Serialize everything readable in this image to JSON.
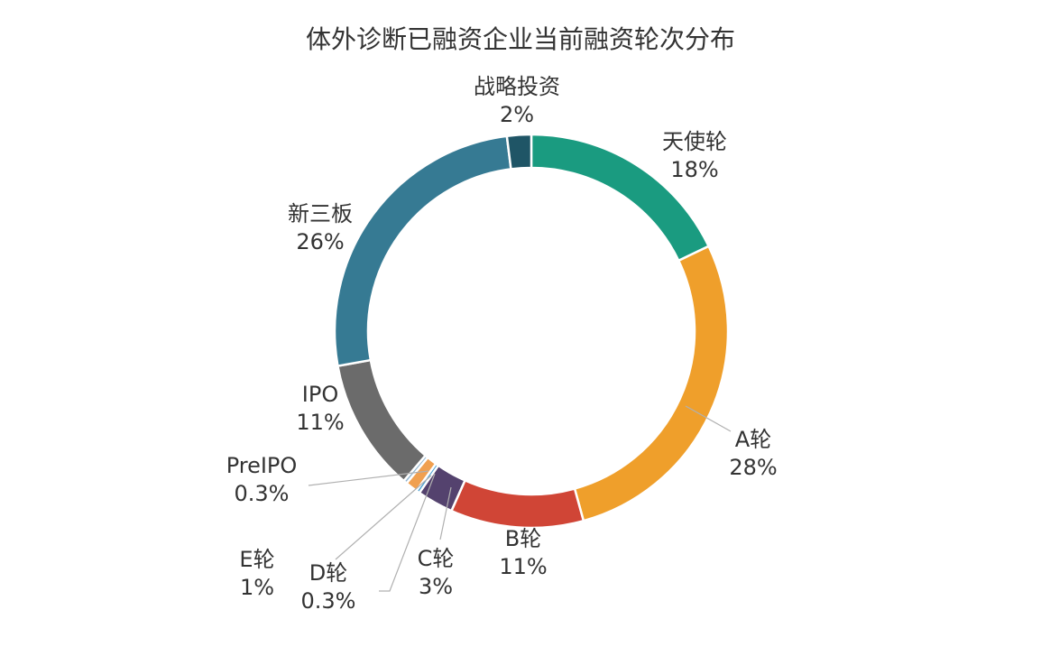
{
  "chart_data": {
    "type": "pie",
    "title": "体外诊断已融资企业当前融资轮次分布",
    "donut": true,
    "slices": [
      {
        "label": "天使轮",
        "value": 18,
        "value_label": "18%",
        "color": "#1a9b80"
      },
      {
        "label": "A轮",
        "value": 28,
        "value_label": "28%",
        "color": "#ef9f2b"
      },
      {
        "label": "B轮",
        "value": 11,
        "value_label": "11%",
        "color": "#d04536"
      },
      {
        "label": "C轮",
        "value": 3,
        "value_label": "3%",
        "color": "#54426e"
      },
      {
        "label": "D轮",
        "value": 0.3,
        "value_label": "0.3%",
        "color": "#4a9fd1"
      },
      {
        "label": "E轮",
        "value": 1,
        "value_label": "1%",
        "color": "#f0a050"
      },
      {
        "label": "PreIPO",
        "value": 0.3,
        "value_label": "0.3%",
        "color": "#8fb4cf"
      },
      {
        "label": "IPO",
        "value": 11,
        "value_label": "11%",
        "color": "#6b6b6b"
      },
      {
        "label": "新三板",
        "value": 26,
        "value_label": "26%",
        "color": "#367a93"
      },
      {
        "label": "战略投资",
        "value": 2,
        "value_label": "2%",
        "color": "#1f5566"
      }
    ]
  }
}
